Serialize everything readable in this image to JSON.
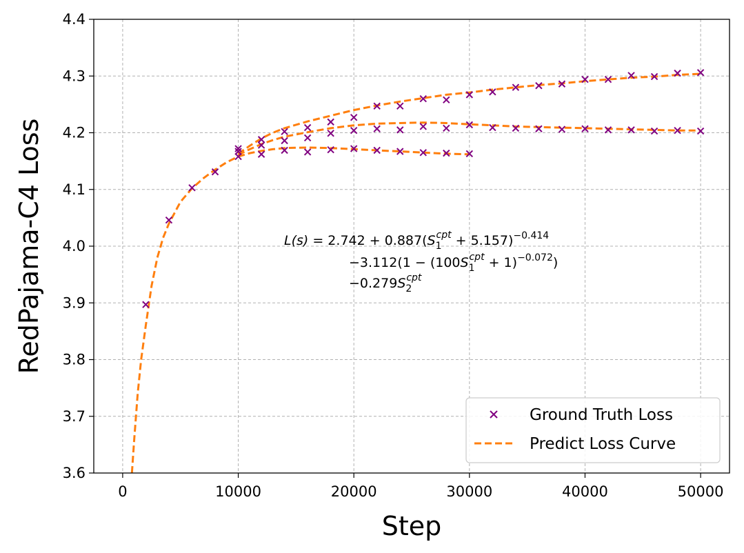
{
  "chart_data": {
    "type": "scatter",
    "xlabel": "Step",
    "ylabel": "RedPajama-C4 Loss",
    "xlim": [
      -2500,
      52500
    ],
    "ylim": [
      3.6,
      4.4
    ],
    "xticks": [
      0,
      10000,
      20000,
      30000,
      40000,
      50000
    ],
    "xtick_labels": [
      "0",
      "10000",
      "20000",
      "30000",
      "40000",
      "50000"
    ],
    "yticks": [
      3.6,
      3.7,
      3.8,
      3.9,
      4.0,
      4.1,
      4.2,
      4.3,
      4.4
    ],
    "ytick_labels": [
      "3.6",
      "3.7",
      "3.8",
      "3.9",
      "4.0",
      "4.1",
      "4.2",
      "4.3",
      "4.4"
    ],
    "grid": true,
    "legend_position": "bottom-right",
    "legend": [
      "Ground Truth Loss",
      "Predict Loss Curve"
    ],
    "colors": {
      "markers": "#800080",
      "curve": "#ff7f0e"
    },
    "series": [
      {
        "kind": "markers",
        "x": [
          2000,
          4000,
          6000,
          8000,
          10000,
          12000,
          14000,
          16000,
          18000,
          20000,
          22000,
          24000,
          26000,
          28000,
          30000
        ],
        "y": [
          3.897,
          4.046,
          4.103,
          4.131,
          4.158,
          4.162,
          4.169,
          4.166,
          4.17,
          4.172,
          4.169,
          4.167,
          4.165,
          4.164,
          4.163
        ]
      },
      {
        "kind": "markers",
        "x": [
          10000,
          12000,
          14000,
          16000,
          18000,
          20000,
          22000,
          24000,
          26000,
          28000,
          30000,
          32000,
          34000,
          36000,
          38000,
          40000,
          42000,
          44000,
          46000,
          48000,
          50000
        ],
        "y": [
          4.167,
          4.178,
          4.186,
          4.191,
          4.199,
          4.204,
          4.207,
          4.205,
          4.211,
          4.208,
          4.214,
          4.209,
          4.208,
          4.207,
          4.206,
          4.207,
          4.205,
          4.205,
          4.203,
          4.204,
          4.203
        ]
      },
      {
        "kind": "markers",
        "x": [
          10000,
          12000,
          14000,
          16000,
          18000,
          20000,
          22000,
          24000,
          26000,
          28000,
          30000,
          32000,
          34000,
          36000,
          38000,
          40000,
          42000,
          44000,
          46000,
          48000,
          50000
        ],
        "y": [
          4.172,
          4.188,
          4.202,
          4.209,
          4.219,
          4.227,
          4.247,
          4.247,
          4.26,
          4.258,
          4.267,
          4.272,
          4.28,
          4.283,
          4.286,
          4.294,
          4.294,
          4.301,
          4.299,
          4.305,
          4.306
        ]
      },
      {
        "kind": "curve",
        "x": [
          800,
          1000,
          1300,
          1600,
          2000,
          2500,
          3000,
          3500,
          4000,
          5000,
          6000,
          7000,
          8000,
          9000,
          10000,
          11000,
          12000,
          13000,
          14000,
          16000,
          18000,
          20000,
          22000,
          24000,
          26000,
          28000,
          30000
        ],
        "y": [
          3.6,
          3.66,
          3.74,
          3.8,
          3.86,
          3.93,
          3.98,
          4.015,
          4.04,
          4.078,
          4.102,
          4.12,
          4.135,
          4.148,
          4.158,
          4.164,
          4.168,
          4.171,
          4.173,
          4.174,
          4.173,
          4.171,
          4.169,
          4.167,
          4.165,
          4.163,
          4.162
        ]
      },
      {
        "kind": "curve",
        "x": [
          10000,
          11000,
          12000,
          13000,
          14000,
          16000,
          18000,
          20000,
          22000,
          24000,
          26000,
          28000,
          30000,
          32000,
          34000,
          36000,
          38000,
          40000,
          42000,
          44000,
          46000,
          48000,
          50000
        ],
        "y": [
          4.161,
          4.171,
          4.18,
          4.187,
          4.193,
          4.201,
          4.208,
          4.213,
          4.216,
          4.217,
          4.218,
          4.217,
          4.215,
          4.213,
          4.211,
          4.21,
          4.209,
          4.208,
          4.207,
          4.206,
          4.205,
          4.204,
          4.204
        ]
      },
      {
        "kind": "curve",
        "x": [
          10000,
          11000,
          12000,
          13000,
          14000,
          16000,
          18000,
          20000,
          22000,
          24000,
          26000,
          28000,
          30000,
          32000,
          34000,
          36000,
          38000,
          40000,
          42000,
          44000,
          46000,
          48000,
          50000
        ],
        "y": [
          4.163,
          4.177,
          4.19,
          4.2,
          4.208,
          4.22,
          4.23,
          4.24,
          4.248,
          4.255,
          4.261,
          4.267,
          4.271,
          4.276,
          4.28,
          4.284,
          4.287,
          4.291,
          4.294,
          4.297,
          4.299,
          4.302,
          4.304
        ]
      }
    ],
    "annotation": {
      "line1": {
        "lhs": "L(s)",
        "a": " = 2.742 + 0.887(",
        "s": "S",
        "sub": "1",
        "sup": "cpt",
        "b": " + 5.157)",
        "exp": "−0.414"
      },
      "line2": {
        "a": "−3.112(1 − (100",
        "s": "S",
        "sub": "1",
        "sup": "cpt",
        "b": " + 1)",
        "exp": "−0.072",
        "c": ")"
      },
      "line3": {
        "a": "−0.279",
        "s": "S",
        "sub": "2",
        "sup": "cpt"
      }
    }
  }
}
